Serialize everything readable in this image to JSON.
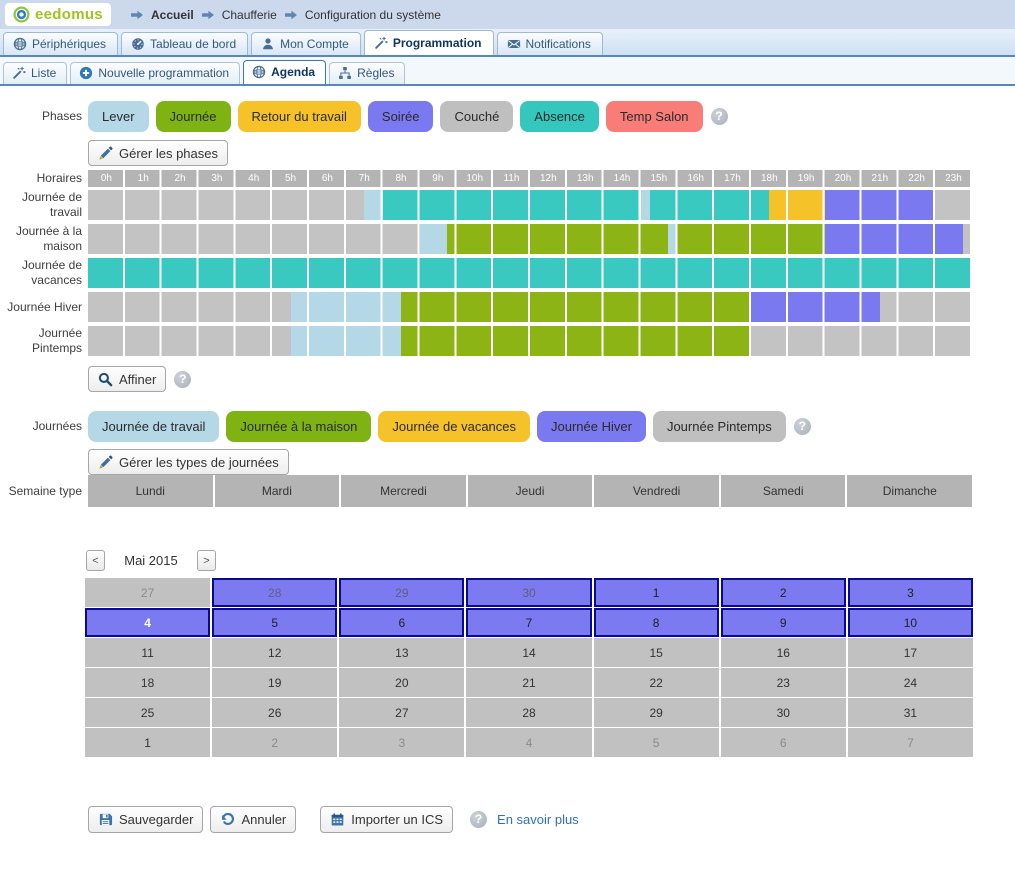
{
  "colors": {
    "cal_hl": "#7b7af0",
    "cal_border": "#0a0a8e",
    "cell_gray": "#c1c1c1",
    "bar_gray": "#b4b4b4",
    "link_blue": "#2d6fc2"
  },
  "header": {
    "logo": "eedomus",
    "breadcrumb": [
      "Accueil",
      "Chaufferie",
      "Configuration du système"
    ]
  },
  "main_tabs": [
    {
      "label": "Périphériques",
      "icon": "sphere-icon",
      "active": false
    },
    {
      "label": "Tableau de bord",
      "icon": "gauge-icon",
      "active": false
    },
    {
      "label": "Mon Compte",
      "icon": "person-icon",
      "active": false
    },
    {
      "label": "Programmation",
      "icon": "wand-icon",
      "active": true
    },
    {
      "label": "Notifications",
      "icon": "envelope-icon",
      "active": false
    }
  ],
  "sub_tabs": [
    {
      "label": "Liste",
      "icon": "wand-icon",
      "active": false
    },
    {
      "label": "Nouvelle programmation",
      "icon": "plus-icon",
      "active": false
    },
    {
      "label": "Agenda",
      "icon": "sphere-icon",
      "active": true
    },
    {
      "label": "Règles",
      "icon": "rules-icon",
      "active": false
    }
  ],
  "phases": {
    "label": "Phases",
    "items": [
      {
        "label": "Lever",
        "color": "#b5d8e6"
      },
      {
        "label": "Journée",
        "color": "#7fb314"
      },
      {
        "label": "Retour du travail",
        "color": "#f6c229"
      },
      {
        "label": "Soirée",
        "color": "#7b79ef"
      },
      {
        "label": "Couché",
        "color": "#c0bfbf"
      },
      {
        "label": "Absence",
        "color": "#35c7bd"
      },
      {
        "label": "Temp Salon",
        "color": "#f87d78"
      }
    ],
    "manage_label": "Gérer les phases"
  },
  "schedule": {
    "label": "Horaires",
    "hours": [
      "0h",
      "1h",
      "2h",
      "3h",
      "4h",
      "5h",
      "6h",
      "7h",
      "8h",
      "9h",
      "10h",
      "11h",
      "12h",
      "13h",
      "14h",
      "15h",
      "16h",
      "17h",
      "18h",
      "19h",
      "20h",
      "21h",
      "22h",
      "23h"
    ]
  },
  "chart_data": {
    "type": "timeline",
    "x_unit": "hour",
    "x_range": [
      0,
      24
    ],
    "phase_colors": {
      "Lever": "#b5d8e6",
      "Journée": "#8cb414",
      "Retour du travail": "#f6c229",
      "Soirée": "#7b79ef",
      "Couché": "#c3c3c3",
      "Absence": "#3ac9c1"
    },
    "rows": [
      {
        "label": "Journée de travail",
        "segments": [
          {
            "from": 0,
            "to": 7.5,
            "phase": "Couché"
          },
          {
            "from": 7.5,
            "to": 8,
            "phase": "Lever"
          },
          {
            "from": 8,
            "to": 15,
            "phase": "Absence"
          },
          {
            "from": 15,
            "to": 15.25,
            "phase": "Lever"
          },
          {
            "from": 15.25,
            "to": 18.5,
            "phase": "Absence"
          },
          {
            "from": 18.5,
            "to": 20,
            "phase": "Retour du travail"
          },
          {
            "from": 20,
            "to": 23,
            "phase": "Soirée"
          },
          {
            "from": 23,
            "to": 24,
            "phase": "Couché"
          }
        ]
      },
      {
        "label": "Journée à la maison",
        "segments": [
          {
            "from": 0,
            "to": 9,
            "phase": "Couché"
          },
          {
            "from": 9,
            "to": 9.75,
            "phase": "Lever"
          },
          {
            "from": 9.75,
            "to": 15.75,
            "phase": "Journée"
          },
          {
            "from": 15.75,
            "to": 16,
            "phase": "Lever"
          },
          {
            "from": 16,
            "to": 20,
            "phase": "Journée"
          },
          {
            "from": 20,
            "to": 23.75,
            "phase": "Soirée"
          },
          {
            "from": 23.75,
            "to": 24,
            "phase": "Couché"
          }
        ]
      },
      {
        "label": "Journée de vacances",
        "segments": [
          {
            "from": 0,
            "to": 24,
            "phase": "Absence"
          }
        ]
      },
      {
        "label": "Journée Hiver",
        "segments": [
          {
            "from": 0,
            "to": 5.5,
            "phase": "Couché"
          },
          {
            "from": 5.5,
            "to": 8.5,
            "phase": "Lever"
          },
          {
            "from": 8.5,
            "to": 18,
            "phase": "Journée"
          },
          {
            "from": 18,
            "to": 21.5,
            "phase": "Soirée"
          },
          {
            "from": 21.5,
            "to": 24,
            "phase": "Couché"
          }
        ]
      },
      {
        "label": "Journée Pintemps",
        "segments": [
          {
            "from": 0,
            "to": 5.5,
            "phase": "Couché"
          },
          {
            "from": 5.5,
            "to": 8.5,
            "phase": "Lever"
          },
          {
            "from": 8.5,
            "to": 18,
            "phase": "Journée"
          },
          {
            "from": 18,
            "to": 24,
            "phase": "Couché"
          }
        ]
      }
    ]
  },
  "affiner": {
    "label": "Affiner"
  },
  "journees": {
    "label": "Journées",
    "items": [
      {
        "label": "Journée de travail",
        "color": "#b5d8e6"
      },
      {
        "label": "Journée à la maison",
        "color": "#7fb314"
      },
      {
        "label": "Journée de vacances",
        "color": "#f6c229"
      },
      {
        "label": "Journée Hiver",
        "color": "#7b79ef"
      },
      {
        "label": "Journée Pintemps",
        "color": "#c0bfbf"
      }
    ],
    "manage_label": "Gérer les types de journées"
  },
  "week": {
    "label": "Semaine type",
    "days": [
      "Lundi",
      "Mardi",
      "Mercredi",
      "Jeudi",
      "Vendredi",
      "Samedi",
      "Dimanche"
    ]
  },
  "calendar": {
    "prev": "<",
    "next": ">",
    "month_label": "Mai 2015",
    "weeks": [
      [
        {
          "day": "27",
          "other_month": true,
          "highlight": false
        },
        {
          "day": "28",
          "other_month": true,
          "highlight": true
        },
        {
          "day": "29",
          "other_month": true,
          "highlight": true
        },
        {
          "day": "30",
          "other_month": true,
          "highlight": true
        },
        {
          "day": "1",
          "highlight": true
        },
        {
          "day": "2",
          "highlight": true
        },
        {
          "day": "3",
          "highlight": true
        }
      ],
      [
        {
          "day": "4",
          "highlight": true,
          "today": true
        },
        {
          "day": "5",
          "highlight": true
        },
        {
          "day": "6",
          "highlight": true
        },
        {
          "day": "7",
          "highlight": true
        },
        {
          "day": "8",
          "highlight": true
        },
        {
          "day": "9",
          "highlight": true
        },
        {
          "day": "10",
          "highlight": true
        }
      ],
      [
        {
          "day": "11"
        },
        {
          "day": "12"
        },
        {
          "day": "13"
        },
        {
          "day": "14"
        },
        {
          "day": "15"
        },
        {
          "day": "16"
        },
        {
          "day": "17"
        }
      ],
      [
        {
          "day": "18"
        },
        {
          "day": "19"
        },
        {
          "day": "20"
        },
        {
          "day": "21"
        },
        {
          "day": "22"
        },
        {
          "day": "23"
        },
        {
          "day": "24"
        }
      ],
      [
        {
          "day": "25"
        },
        {
          "day": "26"
        },
        {
          "day": "27"
        },
        {
          "day": "28"
        },
        {
          "day": "29"
        },
        {
          "day": "30"
        },
        {
          "day": "31"
        }
      ],
      [
        {
          "day": "1"
        },
        {
          "day": "2",
          "other_month": true
        },
        {
          "day": "3",
          "other_month": true
        },
        {
          "day": "4",
          "other_month": true
        },
        {
          "day": "5",
          "other_month": true
        },
        {
          "day": "6",
          "other_month": true
        },
        {
          "day": "7",
          "other_month": true
        }
      ]
    ]
  },
  "footer": {
    "save_label": "Sauvegarder",
    "cancel_label": "Annuler",
    "import_label": "Importer un ICS",
    "more_label": "En savoir plus"
  }
}
